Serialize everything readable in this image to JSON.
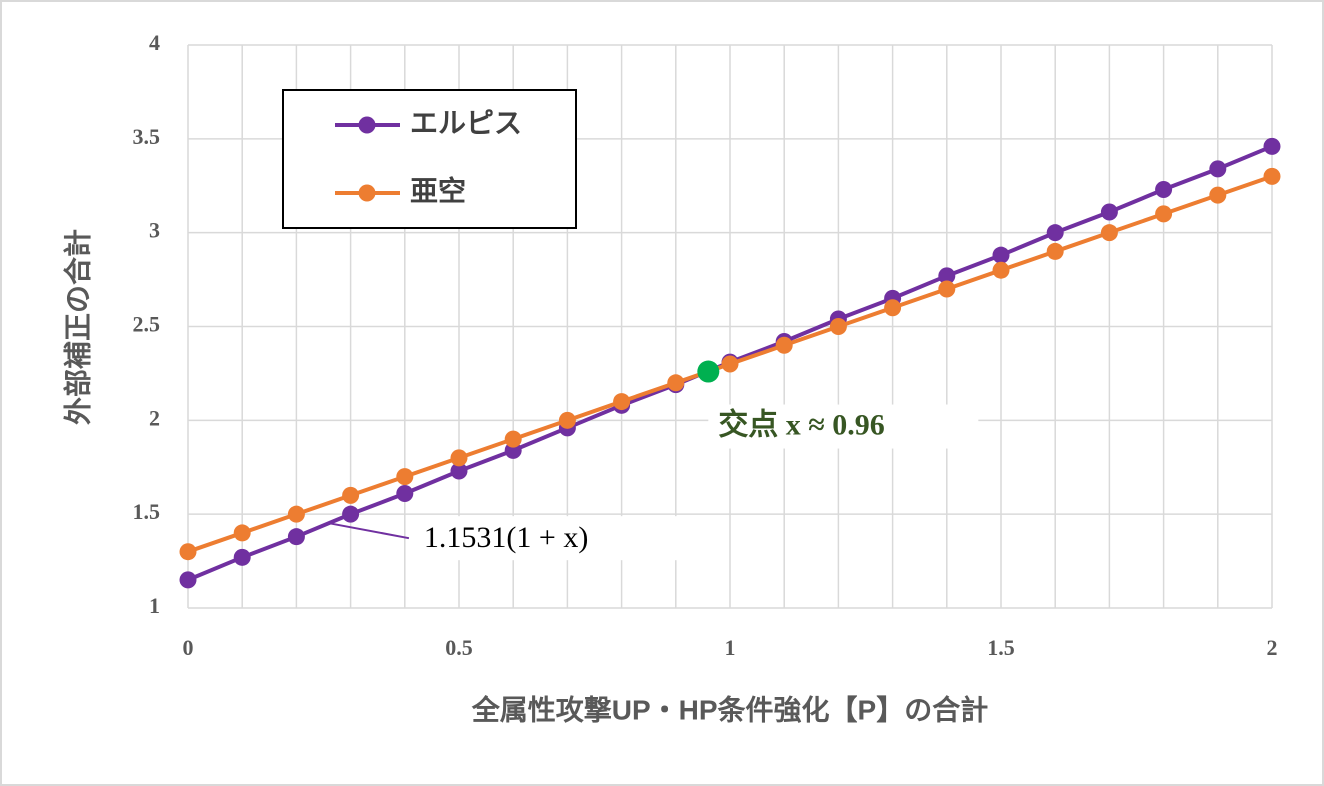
{
  "chart_data": {
    "type": "line",
    "x_label": "全属性攻撃UP・HP条件強化【P】の合計",
    "y_label": "外部補正の合計",
    "x": [
      0,
      0.1,
      0.2,
      0.3,
      0.4,
      0.5,
      0.6,
      0.7,
      0.8,
      0.9,
      1,
      1.1,
      1.2,
      1.3,
      1.4,
      1.5,
      1.6,
      1.7,
      1.8,
      1.9,
      2
    ],
    "series": [
      {
        "name": "エルピス",
        "color": "#7030a0",
        "values": [
          1.15,
          1.27,
          1.38,
          1.5,
          1.61,
          1.73,
          1.84,
          1.96,
          2.08,
          2.19,
          2.31,
          2.42,
          2.54,
          2.65,
          2.77,
          2.88,
          3.0,
          3.11,
          3.23,
          3.34,
          3.46
        ]
      },
      {
        "name": "亜空",
        "color": "#ed7d31",
        "values": [
          1.3,
          1.4,
          1.5,
          1.6,
          1.7,
          1.8,
          1.9,
          2.0,
          2.1,
          2.2,
          2.3,
          2.4,
          2.5,
          2.6,
          2.7,
          2.8,
          2.9,
          3.0,
          3.1,
          3.2,
          3.3
        ]
      }
    ],
    "intersection": {
      "x": 0.96,
      "y": 2.26,
      "color": "#00b050",
      "label": "交点 x ≈ 0.96"
    },
    "formula_label": "1.1531(1 + x)",
    "xlim": [
      0,
      2
    ],
    "xticks": [
      0,
      0.5,
      1,
      1.5,
      2
    ],
    "xgrid": [
      0,
      0.1,
      0.2,
      0.3,
      0.4,
      0.5,
      0.6,
      0.7,
      0.8,
      0.9,
      1,
      1.1,
      1.2,
      1.3,
      1.4,
      1.5,
      1.6,
      1.7,
      1.8,
      1.9,
      2
    ],
    "ylim": [
      1,
      4
    ],
    "yticks": [
      1,
      1.5,
      2,
      2.5,
      3,
      3.5,
      4
    ],
    "grid": true,
    "legend": "upper left"
  }
}
